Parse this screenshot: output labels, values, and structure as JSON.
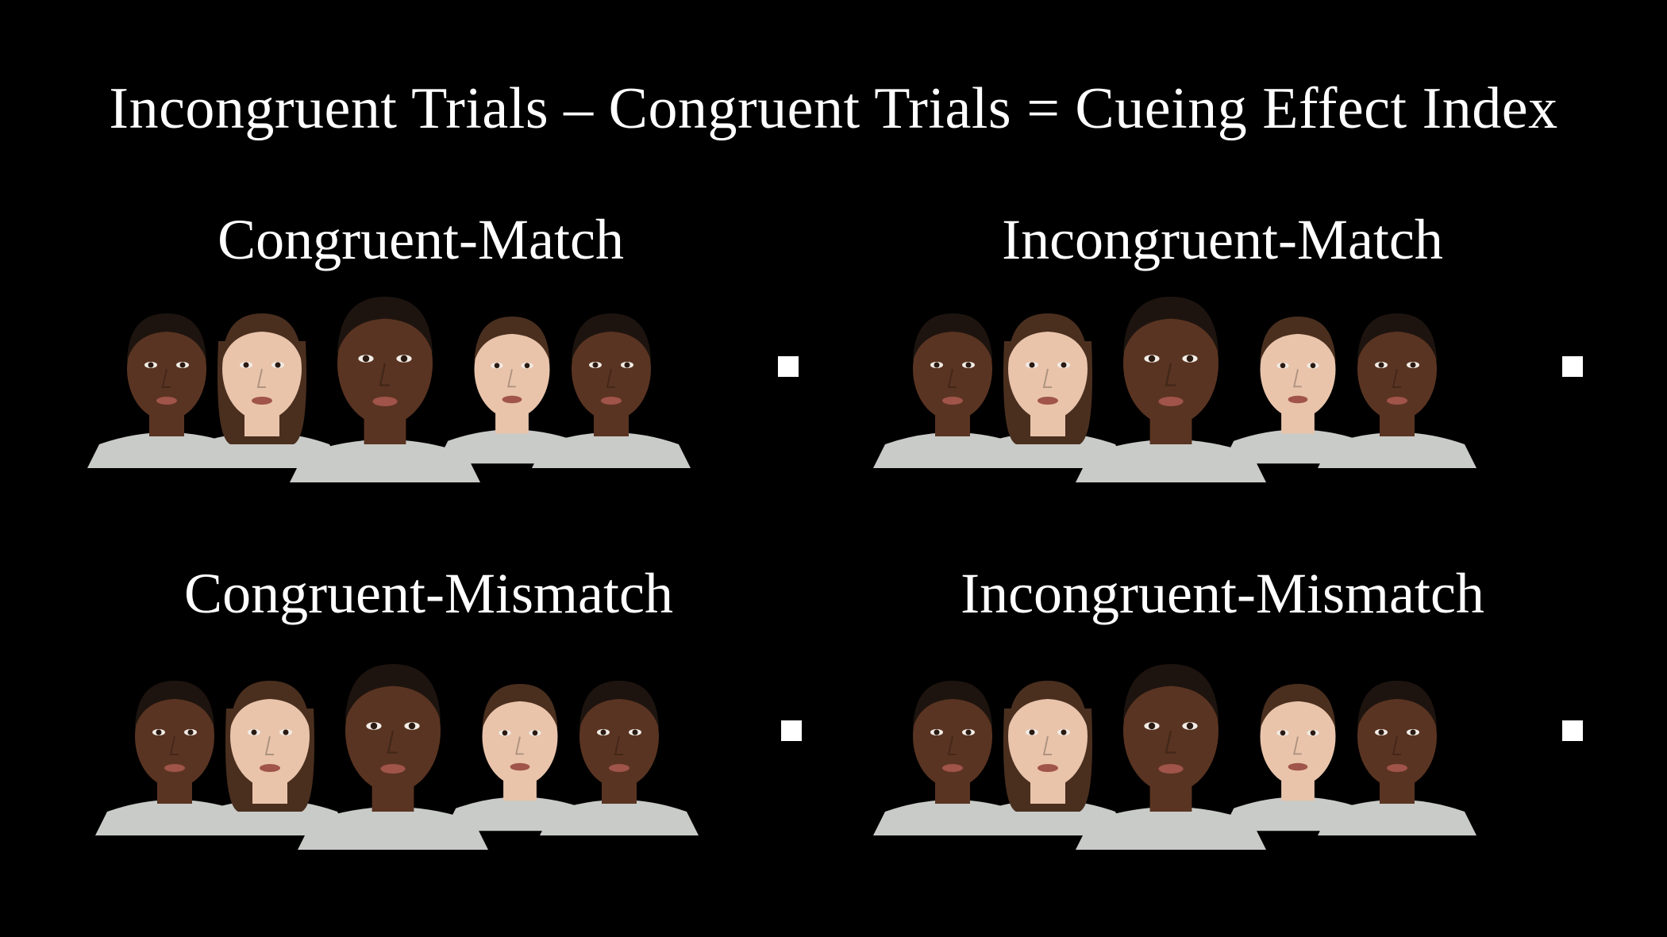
{
  "title": "Incongruent Trials – Congruent Trials = Cueing Effect Index",
  "panels": [
    {
      "label": "Congruent-Match"
    },
    {
      "label": "Incongruent-Match"
    },
    {
      "label": "Congruent-Mismatch"
    },
    {
      "label": "Incongruent-Mismatch"
    }
  ],
  "colors": {
    "background": "#000000",
    "text": "#ffffff",
    "shirt": "#c9cbc8",
    "skin_dark": "#5a3422",
    "skin_light": "#e9c4ab",
    "hair_dark": "#1e140f",
    "hair_brown": "#4a2f1f"
  }
}
